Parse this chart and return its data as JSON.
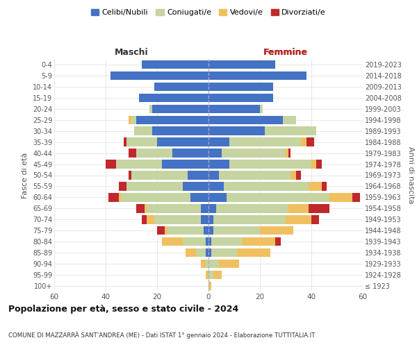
{
  "age_groups": [
    "100+",
    "95-99",
    "90-94",
    "85-89",
    "80-84",
    "75-79",
    "70-74",
    "65-69",
    "60-64",
    "55-59",
    "50-54",
    "45-49",
    "40-44",
    "35-39",
    "30-34",
    "25-29",
    "20-24",
    "15-19",
    "10-14",
    "5-9",
    "0-4"
  ],
  "birth_years": [
    "≤ 1923",
    "1924-1928",
    "1929-1933",
    "1934-1938",
    "1939-1943",
    "1944-1948",
    "1949-1953",
    "1954-1958",
    "1959-1963",
    "1964-1968",
    "1969-1973",
    "1974-1978",
    "1979-1983",
    "1984-1988",
    "1989-1993",
    "1994-1998",
    "1999-2003",
    "2004-2008",
    "2009-2013",
    "2014-2018",
    "2019-2023"
  ],
  "colors": {
    "celibi": "#4472c4",
    "coniugati": "#c5d4a0",
    "vedovi": "#f0c060",
    "divorziati": "#c0282c"
  },
  "maschi": {
    "celibi": [
      0,
      0,
      0,
      1,
      1,
      2,
      3,
      3,
      7,
      10,
      8,
      18,
      14,
      20,
      22,
      28,
      22,
      27,
      21,
      38,
      26
    ],
    "coniugati": [
      0,
      0,
      1,
      4,
      9,
      14,
      18,
      21,
      27,
      22,
      22,
      18,
      14,
      12,
      7,
      2,
      1,
      0,
      0,
      0,
      0
    ],
    "vedovi": [
      0,
      1,
      2,
      4,
      8,
      1,
      3,
      1,
      1,
      0,
      0,
      0,
      0,
      0,
      0,
      1,
      0,
      0,
      0,
      0,
      0
    ],
    "divorziati": [
      0,
      0,
      0,
      0,
      0,
      3,
      2,
      3,
      4,
      3,
      1,
      4,
      3,
      1,
      0,
      0,
      0,
      0,
      0,
      0,
      0
    ]
  },
  "femmine": {
    "celibi": [
      0,
      0,
      0,
      1,
      1,
      2,
      2,
      3,
      7,
      6,
      4,
      8,
      5,
      8,
      22,
      29,
      20,
      25,
      25,
      38,
      26
    ],
    "coniugati": [
      0,
      2,
      4,
      10,
      12,
      18,
      28,
      28,
      40,
      33,
      28,
      32,
      25,
      28,
      20,
      5,
      1,
      0,
      0,
      0,
      0
    ],
    "vedovi": [
      1,
      3,
      8,
      13,
      13,
      13,
      10,
      8,
      9,
      5,
      2,
      2,
      1,
      2,
      0,
      0,
      0,
      0,
      0,
      0,
      0
    ],
    "divorziati": [
      0,
      0,
      0,
      0,
      2,
      0,
      3,
      8,
      3,
      2,
      2,
      2,
      1,
      3,
      0,
      0,
      0,
      0,
      0,
      0,
      0
    ]
  },
  "xlim": 60,
  "title": "Popolazione per età, sesso e stato civile - 2024",
  "subtitle": "COMUNE DI MAZZARRÀ SANT'ANDREA (ME) - Dati ISTAT 1° gennaio 2024 - Elaborazione TUTTITALIA.IT",
  "legend_labels": [
    "Celibi/Nubili",
    "Coniugati/e",
    "Vedovi/e",
    "Divorziati/e"
  ],
  "ylabel_left": "Fasce di età",
  "ylabel_right": "Anni di nascita",
  "xlabel_left": "Maschi",
  "xlabel_right": "Femmine",
  "bg_color": "#ffffff"
}
